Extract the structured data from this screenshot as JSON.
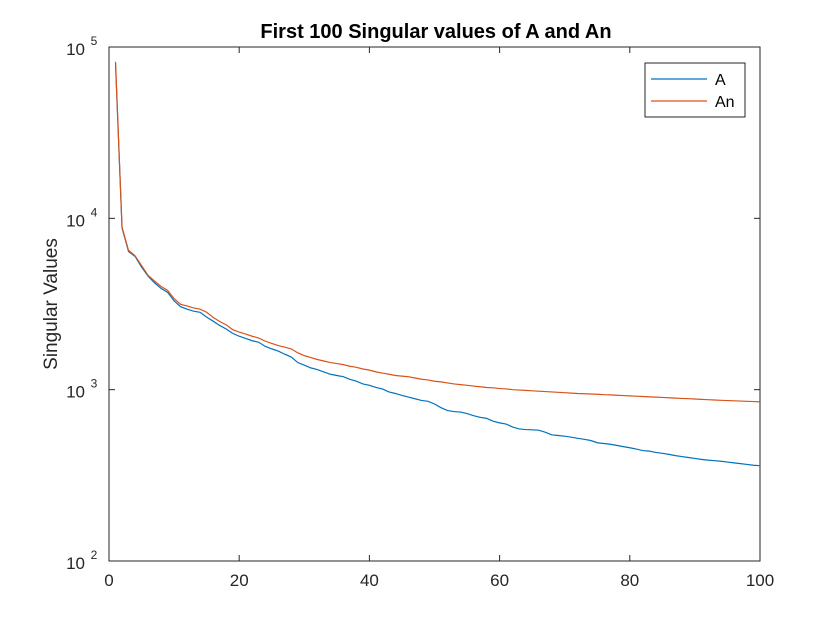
{
  "chart_data": {
    "type": "line",
    "title": "First 100 Singular values of A and An",
    "xlabel": "",
    "ylabel": "Singular Values",
    "xlim": [
      0,
      100
    ],
    "ylim": [
      100,
      100000
    ],
    "yscale": "log",
    "grid": false,
    "legend_position": "top-right",
    "x_ticks": [
      {
        "value": 0,
        "label": "0"
      },
      {
        "value": 20,
        "label": "20"
      },
      {
        "value": 40,
        "label": "40"
      },
      {
        "value": 60,
        "label": "60"
      },
      {
        "value": 80,
        "label": "80"
      },
      {
        "value": 100,
        "label": "100"
      }
    ],
    "y_ticks": [
      {
        "value": 100,
        "base": "10",
        "exp": "2"
      },
      {
        "value": 1000,
        "base": "10",
        "exp": "3"
      },
      {
        "value": 10000,
        "base": "10",
        "exp": "4"
      },
      {
        "value": 100000,
        "base": "10",
        "exp": "5"
      }
    ],
    "x": [
      1,
      2,
      3,
      4,
      5,
      6,
      7,
      8,
      9,
      10,
      11,
      12,
      13,
      14,
      15,
      16,
      17,
      18,
      19,
      20,
      21,
      22,
      23,
      24,
      25,
      26,
      27,
      28,
      29,
      30,
      31,
      32,
      33,
      34,
      35,
      36,
      37,
      38,
      39,
      40,
      41,
      42,
      43,
      44,
      45,
      46,
      47,
      48,
      49,
      50,
      51,
      52,
      53,
      54,
      55,
      56,
      57,
      58,
      59,
      60,
      61,
      62,
      63,
      64,
      65,
      66,
      67,
      68,
      69,
      70,
      71,
      72,
      73,
      74,
      75,
      76,
      77,
      78,
      79,
      80,
      81,
      82,
      83,
      84,
      85,
      86,
      87,
      88,
      89,
      90,
      91,
      92,
      93,
      94,
      95,
      96,
      97,
      98,
      99,
      100
    ],
    "series": [
      {
        "name": "A",
        "color": "#0072BD",
        "values": [
          80000,
          8800,
          6400,
          6000,
          5200,
          4600,
          4200,
          3900,
          3700,
          3300,
          3050,
          2950,
          2870,
          2830,
          2650,
          2510,
          2370,
          2260,
          2130,
          2050,
          1990,
          1930,
          1890,
          1790,
          1730,
          1680,
          1610,
          1550,
          1440,
          1390,
          1340,
          1310,
          1270,
          1230,
          1210,
          1190,
          1150,
          1120,
          1080,
          1060,
          1030,
          1010,
          970,
          950,
          925,
          905,
          885,
          865,
          855,
          825,
          785,
          755,
          745,
          740,
          725,
          705,
          690,
          680,
          655,
          640,
          630,
          605,
          590,
          585,
          583,
          580,
          565,
          545,
          540,
          535,
          528,
          520,
          513,
          505,
          490,
          485,
          480,
          473,
          465,
          458,
          450,
          441,
          438,
          430,
          425,
          419,
          412,
          407,
          402,
          397,
          392,
          388,
          385,
          382,
          378,
          374,
          370,
          366,
          362,
          360
        ]
      },
      {
        "name": "An",
        "color": "#D95319",
        "values": [
          82000,
          8900,
          6500,
          6050,
          5300,
          4650,
          4300,
          4000,
          3800,
          3400,
          3150,
          3080,
          3000,
          2950,
          2830,
          2640,
          2500,
          2390,
          2240,
          2170,
          2110,
          2050,
          2000,
          1920,
          1860,
          1810,
          1770,
          1730,
          1640,
          1580,
          1540,
          1500,
          1470,
          1440,
          1420,
          1400,
          1370,
          1350,
          1320,
          1300,
          1270,
          1250,
          1230,
          1210,
          1200,
          1190,
          1170,
          1150,
          1140,
          1120,
          1110,
          1095,
          1080,
          1070,
          1060,
          1050,
          1040,
          1030,
          1025,
          1015,
          1010,
          1000,
          995,
          990,
          985,
          980,
          975,
          970,
          965,
          960,
          955,
          950,
          947,
          943,
          940,
          935,
          932,
          928,
          924,
          920,
          916,
          912,
          908,
          905,
          901,
          897,
          893,
          889,
          886,
          882,
          878,
          874,
          870,
          867,
          864,
          861,
          858,
          855,
          852,
          849
        ]
      }
    ]
  }
}
